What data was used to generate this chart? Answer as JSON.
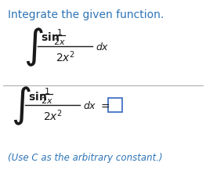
{
  "title": "Integrate the given function.",
  "title_color": "#2E74B5",
  "background_color": "#ffffff",
  "text_color": "#1a1a1a",
  "line_color": "#b0b0b0",
  "footnote": "(Use C as the arbitrary constant.)",
  "footnote_color": "#2E74B5",
  "box_edge_color": "#4472C4"
}
